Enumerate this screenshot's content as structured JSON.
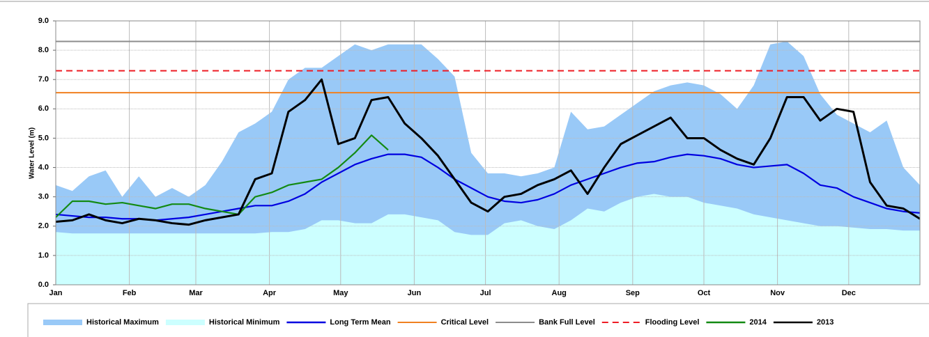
{
  "chart_data": {
    "type": "hydrograph",
    "ylabel": "Water Level (m)",
    "xlim": [
      0,
      364
    ],
    "xticks": [
      {
        "value": 0,
        "label": "Jan"
      },
      {
        "value": 31,
        "label": "Feb"
      },
      {
        "value": 59,
        "label": "Mar"
      },
      {
        "value": 90,
        "label": "Apr"
      },
      {
        "value": 120,
        "label": "May"
      },
      {
        "value": 151,
        "label": "Jun"
      },
      {
        "value": 181,
        "label": "Jul"
      },
      {
        "value": 212,
        "label": "Aug"
      },
      {
        "value": 243,
        "label": "Sep"
      },
      {
        "value": 273,
        "label": "Oct"
      },
      {
        "value": 304,
        "label": "Nov"
      },
      {
        "value": 334,
        "label": "Dec"
      }
    ],
    "ylim": [
      0,
      9
    ],
    "yticks": [
      {
        "value": 0,
        "label": "0.0"
      },
      {
        "value": 1,
        "label": "1.0"
      },
      {
        "value": 2,
        "label": "2.0"
      },
      {
        "value": 3,
        "label": "3.0"
      },
      {
        "value": 4,
        "label": "4.0"
      },
      {
        "value": 5,
        "label": "5.0"
      },
      {
        "value": 6,
        "label": "6.0"
      },
      {
        "value": 7,
        "label": "7.0"
      },
      {
        "value": 8,
        "label": "8.0"
      },
      {
        "value": 9,
        "label": "9.0"
      }
    ],
    "grid": true,
    "x": [
      0,
      7,
      14,
      21,
      28,
      35,
      42,
      49,
      56,
      63,
      70,
      77,
      84,
      91,
      98,
      105,
      112,
      119,
      126,
      133,
      140,
      147,
      154,
      161,
      168,
      175,
      182,
      189,
      196,
      203,
      210,
      217,
      224,
      231,
      238,
      245,
      252,
      259,
      266,
      273,
      280,
      287,
      294,
      301,
      308,
      315,
      322,
      329,
      336,
      343,
      350,
      357,
      364
    ],
    "series": [
      {
        "name": "Historical Maximum",
        "kind": "area",
        "color": "#99c9f7",
        "values": [
          3.4,
          3.2,
          3.7,
          3.9,
          3.0,
          3.7,
          3.0,
          3.3,
          3.0,
          3.4,
          4.2,
          5.2,
          5.5,
          5.9,
          7.0,
          7.4,
          7.4,
          7.8,
          8.2,
          8.0,
          8.2,
          8.2,
          8.2,
          7.7,
          7.1,
          4.5,
          3.8,
          3.8,
          3.7,
          3.8,
          4.0,
          5.9,
          5.3,
          5.4,
          5.8,
          6.2,
          6.6,
          6.8,
          6.9,
          6.8,
          6.5,
          6.0,
          6.8,
          8.2,
          8.3,
          7.8,
          6.5,
          5.8,
          5.5,
          5.2,
          5.6,
          4.0,
          3.4
        ]
      },
      {
        "name": "Historical Minimum",
        "kind": "area",
        "color": "#ccffff",
        "values": [
          1.8,
          1.75,
          1.75,
          1.75,
          1.75,
          1.75,
          1.75,
          1.75,
          1.75,
          1.75,
          1.75,
          1.75,
          1.75,
          1.8,
          1.8,
          1.9,
          2.2,
          2.2,
          2.1,
          2.1,
          2.4,
          2.4,
          2.3,
          2.2,
          1.8,
          1.7,
          1.7,
          2.1,
          2.2,
          2.0,
          1.9,
          2.2,
          2.6,
          2.5,
          2.8,
          3.0,
          3.1,
          3.0,
          3.0,
          2.8,
          2.7,
          2.6,
          2.4,
          2.3,
          2.2,
          2.1,
          2.0,
          2.0,
          1.95,
          1.9,
          1.9,
          1.85,
          1.85
        ]
      },
      {
        "name": "Long Term Mean",
        "kind": "line",
        "color": "#0000e0",
        "values": [
          2.4,
          2.35,
          2.3,
          2.3,
          2.25,
          2.25,
          2.2,
          2.25,
          2.3,
          2.4,
          2.5,
          2.6,
          2.7,
          2.7,
          2.85,
          3.1,
          3.5,
          3.8,
          4.1,
          4.3,
          4.45,
          4.45,
          4.35,
          4.0,
          3.6,
          3.3,
          3.0,
          2.85,
          2.8,
          2.9,
          3.1,
          3.4,
          3.6,
          3.8,
          4.0,
          4.15,
          4.2,
          4.35,
          4.45,
          4.4,
          4.3,
          4.1,
          4.0,
          4.05,
          4.1,
          3.8,
          3.4,
          3.3,
          3.0,
          2.8,
          2.6,
          2.5,
          2.45
        ]
      },
      {
        "name": "Critical Level",
        "kind": "hline",
        "color": "#f08020",
        "value": 6.55
      },
      {
        "name": "Bank Full Level",
        "kind": "hline",
        "color": "#8c8c8c",
        "value": 8.3
      },
      {
        "name": "Flooding Level",
        "kind": "hline",
        "color": "#ee1c24",
        "dashed": true,
        "value": 7.3
      },
      {
        "name": "2014",
        "kind": "line",
        "color": "#138a13",
        "values": [
          2.3,
          2.85,
          2.85,
          2.75,
          2.8,
          2.7,
          2.6,
          2.75,
          2.75,
          2.6,
          2.5,
          2.4,
          3.0,
          3.15,
          3.4,
          3.5,
          3.6,
          4.0,
          4.5,
          5.1,
          4.6,
          null,
          null,
          null,
          null,
          null,
          null,
          null,
          null,
          null,
          null,
          null,
          null,
          null,
          null,
          null,
          null,
          null,
          null,
          null,
          null,
          null,
          null,
          null,
          null,
          null,
          null,
          null,
          null,
          null,
          null,
          null,
          null
        ]
      },
      {
        "name": "2013",
        "kind": "line",
        "color": "#000000",
        "values": [
          2.15,
          2.2,
          2.4,
          2.2,
          2.1,
          2.25,
          2.2,
          2.1,
          2.05,
          2.2,
          2.3,
          2.4,
          3.6,
          3.8,
          5.9,
          6.3,
          7.0,
          4.8,
          5.0,
          6.3,
          6.4,
          5.5,
          5.0,
          4.4,
          3.6,
          2.8,
          2.5,
          3.0,
          3.1,
          3.4,
          3.6,
          3.9,
          3.1,
          4.0,
          4.8,
          5.1,
          5.4,
          5.7,
          5.0,
          5.0,
          4.6,
          4.3,
          4.1,
          5.0,
          6.4,
          6.4,
          5.6,
          6.0,
          5.9,
          3.5,
          2.7,
          2.6,
          2.25
        ]
      }
    ]
  }
}
